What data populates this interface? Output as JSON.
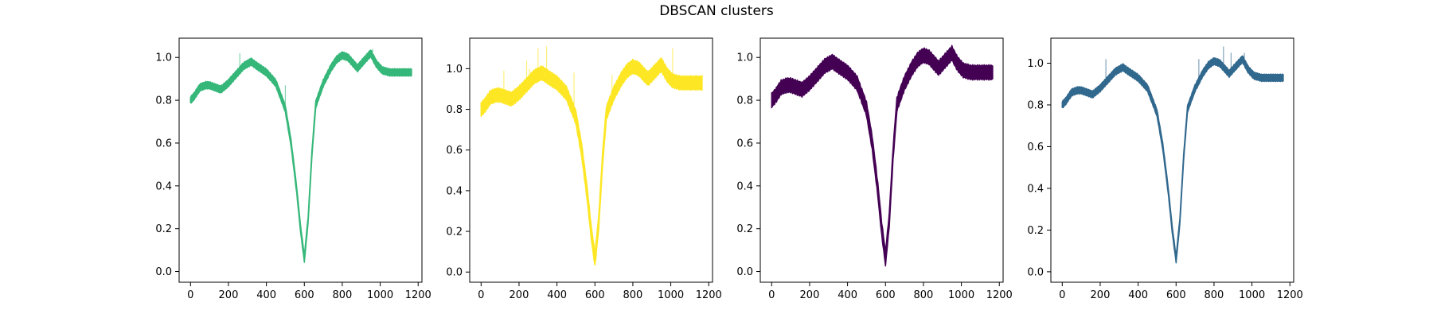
{
  "figure": {
    "title": "DBSCAN clusters"
  },
  "chart_data": [
    {
      "type": "line",
      "color": "#35b779",
      "xlim": [
        -60,
        1220
      ],
      "ylim": [
        -0.05,
        1.09
      ],
      "xticks": [
        0,
        200,
        400,
        600,
        800,
        1000,
        1200
      ],
      "xtick_labels": [
        "0",
        "200",
        "400",
        "600",
        "800",
        "1000",
        "1200"
      ],
      "yticks": [
        0.0,
        0.2,
        0.4,
        0.6,
        0.8,
        1.0
      ],
      "ytick_labels": [
        "0.0",
        "0.2",
        "0.4",
        "0.6",
        "0.8",
        "1.0"
      ],
      "band_width": 0.03,
      "spikes": [
        [
          260,
          1.02
        ],
        [
          500,
          0.87
        ],
        [
          960,
          1.04
        ]
      ]
    },
    {
      "type": "line",
      "color": "#fde725",
      "xlim": [
        -60,
        1220
      ],
      "ylim": [
        -0.05,
        1.15
      ],
      "xticks": [
        0,
        200,
        400,
        600,
        800,
        1000,
        1200
      ],
      "xtick_labels": [
        "0",
        "200",
        "400",
        "600",
        "800",
        "1000",
        "1200"
      ],
      "yticks": [
        0.0,
        0.2,
        0.4,
        0.6,
        0.8,
        1.0
      ],
      "ytick_labels": [
        "0.0",
        "0.2",
        "0.4",
        "0.6",
        "0.8",
        "1.0"
      ],
      "band_width": 0.06,
      "spikes": [
        [
          120,
          0.99
        ],
        [
          240,
          1.04
        ],
        [
          255,
          1.0
        ],
        [
          300,
          1.1
        ],
        [
          345,
          1.11
        ],
        [
          490,
          0.98
        ],
        [
          690,
          0.97
        ],
        [
          940,
          1.04
        ],
        [
          1010,
          1.1
        ]
      ]
    },
    {
      "type": "line",
      "color": "#440154",
      "xlim": [
        -60,
        1220
      ],
      "ylim": [
        -0.05,
        1.09
      ],
      "xticks": [
        0,
        200,
        400,
        600,
        800,
        1000,
        1200
      ],
      "xtick_labels": [
        "0",
        "200",
        "400",
        "600",
        "800",
        "1000",
        "1200"
      ],
      "yticks": [
        0.0,
        0.2,
        0.4,
        0.6,
        0.8,
        1.0
      ],
      "ytick_labels": [
        "0.0",
        "0.2",
        "0.4",
        "0.6",
        "0.8",
        "1.0"
      ],
      "band_width": 0.06,
      "spikes": []
    },
    {
      "type": "line",
      "color": "#31688e",
      "xlim": [
        -60,
        1220
      ],
      "ylim": [
        -0.05,
        1.12
      ],
      "xticks": [
        0,
        200,
        400,
        600,
        800,
        1000,
        1200
      ],
      "xtick_labels": [
        "0",
        "200",
        "400",
        "600",
        "800",
        "1000",
        "1200"
      ],
      "yticks": [
        0.0,
        0.2,
        0.4,
        0.6,
        0.8,
        1.0
      ],
      "ytick_labels": [
        "0.0",
        "0.2",
        "0.4",
        "0.6",
        "0.8",
        "1.0"
      ],
      "band_width": 0.03,
      "spikes": [
        [
          230,
          1.02
        ],
        [
          720,
          1.02
        ],
        [
          850,
          1.08
        ],
        [
          890,
          1.05
        ],
        [
          960,
          1.05
        ]
      ]
    }
  ],
  "profile": {
    "x": [
      0,
      20,
      50,
      80,
      100,
      130,
      160,
      200,
      240,
      280,
      320,
      350,
      400,
      450,
      500,
      530,
      560,
      580,
      600,
      620,
      640,
      660,
      700,
      740,
      770,
      800,
      830,
      860,
      880,
      910,
      950,
      980,
      1010,
      1050,
      1100,
      1165
    ],
    "y": [
      0.8,
      0.82,
      0.86,
      0.87,
      0.87,
      0.86,
      0.85,
      0.88,
      0.92,
      0.96,
      0.98,
      0.96,
      0.93,
      0.88,
      0.76,
      0.6,
      0.38,
      0.2,
      0.06,
      0.24,
      0.55,
      0.78,
      0.88,
      0.95,
      0.99,
      1.01,
      1.0,
      0.97,
      0.95,
      0.98,
      1.02,
      0.97,
      0.94,
      0.93,
      0.93,
      0.93
    ]
  }
}
